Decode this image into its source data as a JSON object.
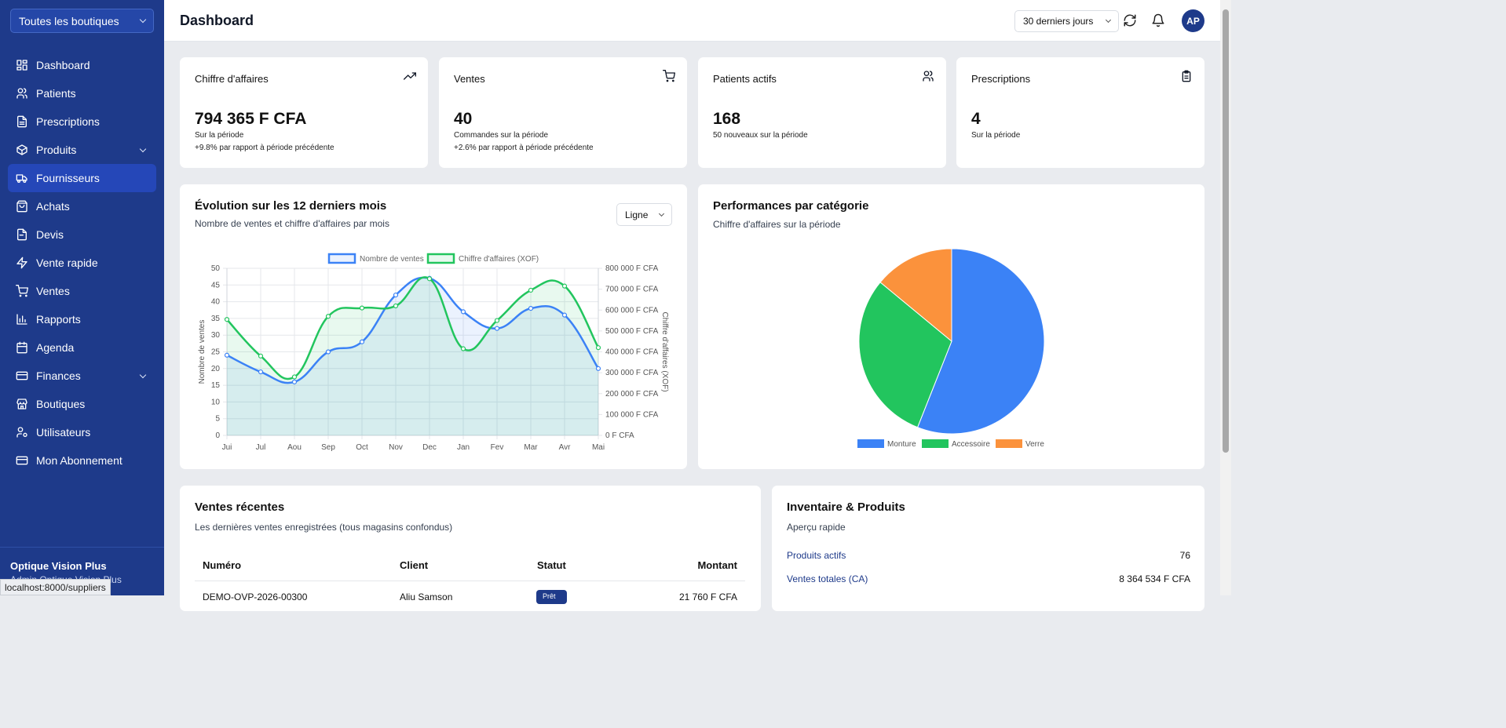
{
  "sidebar": {
    "store_select": "Toutes les boutiques",
    "items": [
      {
        "label": "Dashboard",
        "icon": "dashboard-icon"
      },
      {
        "label": "Patients",
        "icon": "users-icon"
      },
      {
        "label": "Prescriptions",
        "icon": "file-text-icon"
      },
      {
        "label": "Produits",
        "icon": "package-icon",
        "expandable": true
      },
      {
        "label": "Fournisseurs",
        "icon": "truck-icon",
        "active": true
      },
      {
        "label": "Achats",
        "icon": "shopping-bag-icon"
      },
      {
        "label": "Devis",
        "icon": "file-icon"
      },
      {
        "label": "Vente rapide",
        "icon": "zap-icon"
      },
      {
        "label": "Ventes",
        "icon": "cart-icon"
      },
      {
        "label": "Rapports",
        "icon": "bar-chart-icon"
      },
      {
        "label": "Agenda",
        "icon": "calendar-icon"
      },
      {
        "label": "Finances",
        "icon": "credit-card-icon",
        "expandable": true
      },
      {
        "label": "Boutiques",
        "icon": "store-icon"
      },
      {
        "label": "Utilisateurs",
        "icon": "user-cog-icon"
      },
      {
        "label": "Mon Abonnement",
        "icon": "credit-card-icon"
      }
    ],
    "footer": {
      "store_name": "Optique Vision Plus",
      "user": "Admin Optique Vision Plus"
    },
    "url_tooltip": "localhost:8000/suppliers"
  },
  "header": {
    "title": "Dashboard",
    "period": "30 derniers jours",
    "avatar_initials": "AP"
  },
  "stats": [
    {
      "title": "Chiffre d'affaires",
      "icon": "trending-up-icon",
      "value": "794 365 F CFA",
      "sub": "Sur la période",
      "sub2": "+9.8% par rapport à période précédente"
    },
    {
      "title": "Ventes",
      "icon": "cart-icon",
      "value": "40",
      "sub": "Commandes sur la période",
      "sub2": "+2.6% par rapport à période précédente"
    },
    {
      "title": "Patients actifs",
      "icon": "users-icon",
      "value": "168",
      "sub": "50 nouveaux sur la période",
      "sub2": ""
    },
    {
      "title": "Prescriptions",
      "icon": "clipboard-icon",
      "value": "4",
      "sub": "Sur la période",
      "sub2": ""
    }
  ],
  "evolution": {
    "title": "Évolution sur les 12 derniers mois",
    "subtitle": "Nombre de ventes et chiffre d'affaires par mois",
    "chart_type": "Ligne"
  },
  "performance": {
    "title": "Performances par catégorie",
    "subtitle": "Chiffre d'affaires sur la période"
  },
  "recent_sales": {
    "title": "Ventes récentes",
    "subtitle": "Les dernières ventes enregistrées (tous magasins confondus)",
    "columns": [
      "Numéro",
      "Client",
      "Statut",
      "Montant"
    ],
    "rows": [
      {
        "number": "DEMO-OVP-2026-00300",
        "client": "Aliu Samson",
        "status": "Prêt",
        "amount": "21 760 F CFA"
      }
    ]
  },
  "inventory": {
    "title": "Inventaire & Produits",
    "subtitle": "Aperçu rapide",
    "rows": [
      {
        "label": "Produits actifs",
        "value": "76"
      },
      {
        "label": "Ventes totales (CA)",
        "value": "8 364 534 F CFA"
      }
    ]
  },
  "colors": {
    "sidebar": "#1e3a8a",
    "sales_line": "#3b82f6",
    "revenue_line": "#22c55e",
    "verre": "#fb923c"
  },
  "chart_data": [
    {
      "type": "line",
      "categories": [
        "Jui",
        "Jul",
        "Aou",
        "Sep",
        "Oct",
        "Nov",
        "Dec",
        "Jan",
        "Fev",
        "Mar",
        "Avr",
        "Mai"
      ],
      "series": [
        {
          "name": "Nombre de ventes",
          "axis": "left",
          "values": [
            24,
            19,
            16,
            25,
            28,
            42,
            47,
            37,
            32,
            38,
            36,
            20
          ]
        },
        {
          "name": "Chiffre d'affaires (XOF)",
          "axis": "right",
          "values": [
            555000,
            380000,
            280000,
            570000,
            610000,
            620000,
            750000,
            415000,
            550000,
            695000,
            715000,
            420000
          ]
        }
      ],
      "ylabel": "Nombre de ventes",
      "y2label": "Chiffre d'affaires (XOF)",
      "ylim": [
        0,
        50
      ],
      "yticks": [
        "0",
        "5",
        "10",
        "15",
        "20",
        "25",
        "30",
        "35",
        "40",
        "45",
        "50"
      ],
      "y2lim": [
        0,
        800000
      ],
      "y2ticks": [
        "0 F CFA",
        "100 000 F CFA",
        "200 000 F CFA",
        "300 000 F CFA",
        "400 000 F CFA",
        "500 000 F CFA",
        "600 000 F CFA",
        "700 000 F CFA",
        "800 000 F CFA"
      ],
      "grid": true,
      "legend": "top"
    },
    {
      "type": "pie",
      "labels": [
        "Monture",
        "Accessoire",
        "Verre"
      ],
      "values": [
        56,
        30,
        14
      ],
      "colors": [
        "#3b82f6",
        "#22c55e",
        "#fb923c"
      ],
      "legend": "bottom"
    }
  ]
}
